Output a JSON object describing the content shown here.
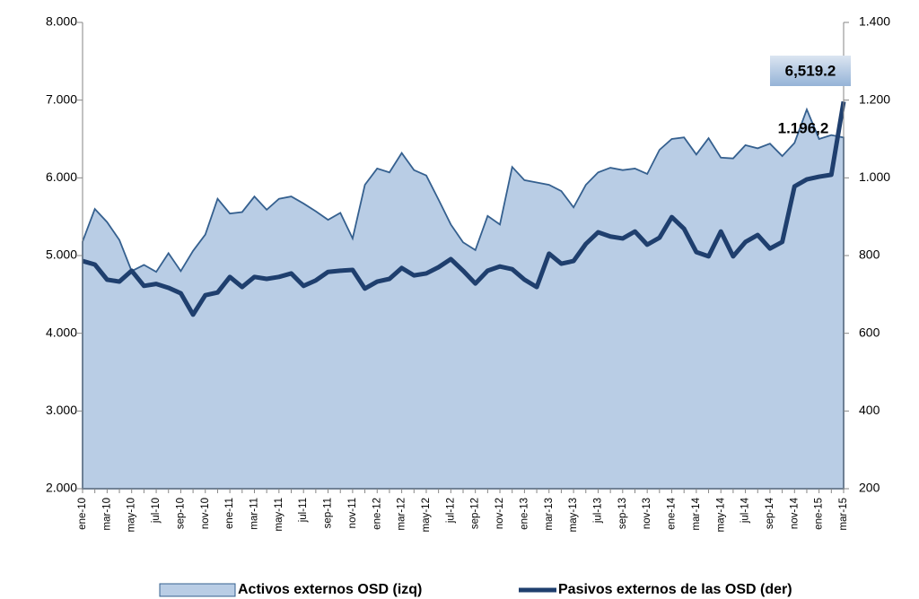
{
  "chart_data": {
    "type": "area_line",
    "categories": [
      "ene-10",
      null,
      "mar-10",
      null,
      "may-10",
      null,
      "jul-10",
      null,
      "sep-10",
      null,
      "nov-10",
      null,
      "ene-11",
      null,
      "mar-11",
      null,
      "may-11",
      null,
      "jul-11",
      null,
      "sep-11",
      null,
      "nov-11",
      null,
      "ene-12",
      null,
      "mar-12",
      null,
      "may-12",
      null,
      "jul-12",
      null,
      "sep-12",
      null,
      "nov-12",
      null,
      "ene-13",
      null,
      "mar-13",
      null,
      "may-13",
      null,
      "jul-13",
      null,
      "sep-13",
      null,
      "nov-13",
      null,
      "ene-14",
      null,
      "mar-14",
      null,
      "may-14",
      null,
      "jul-14",
      null,
      "sep-14",
      null,
      "nov-14",
      null,
      "ene-15",
      null,
      "mar-15"
    ],
    "series": [
      {
        "name": "Activos externos OSD (izq)",
        "type": "area",
        "axis": "y",
        "color": "#b9cde5",
        "stroke": "#35608f",
        "values": [
          5180,
          5600,
          5430,
          5200,
          4800,
          4880,
          4790,
          5030,
          4800,
          5060,
          5270,
          5730,
          5540,
          5560,
          5760,
          5590,
          5730,
          5760,
          5670,
          5570,
          5460,
          5550,
          5220,
          5910,
          6120,
          6070,
          6320,
          6100,
          6030,
          5720,
          5400,
          5170,
          5070,
          5510,
          5400,
          6140,
          5970,
          5940,
          5910,
          5830,
          5620,
          5910,
          6070,
          6130,
          6100,
          6120,
          6050,
          6360,
          6500,
          6520,
          6300,
          6510,
          6260,
          6250,
          6420,
          6380,
          6440,
          6280,
          6450,
          6880,
          6500,
          6550,
          6519.2
        ],
        "value_labels": [
          null,
          null,
          null,
          null,
          null,
          null,
          null,
          null,
          null,
          null,
          null,
          null,
          null,
          null,
          null,
          null,
          null,
          null,
          null,
          null,
          null,
          null,
          null,
          null,
          null,
          null,
          null,
          null,
          null,
          null,
          null,
          null,
          null,
          null,
          null,
          null,
          null,
          null,
          null,
          null,
          null,
          null,
          null,
          null,
          null,
          null,
          null,
          null,
          null,
          null,
          null,
          null,
          null,
          null,
          null,
          null,
          null,
          null,
          null,
          null,
          null,
          null,
          "6,519.2"
        ]
      },
      {
        "name": "Pasivos externos de las OSD (der)",
        "type": "line",
        "axis": "y2",
        "color": "#1f3f6e",
        "values": [
          786,
          777,
          738,
          733,
          761,
          722,
          727,
          717,
          703,
          648,
          698,
          705,
          745,
          719,
          745,
          740,
          745,
          754,
          722,
          736,
          758,
          761,
          763,
          715,
          733,
          740,
          768,
          749,
          754,
          770,
          791,
          761,
          728,
          761,
          772,
          765,
          738,
          719,
          805,
          779,
          786,
          830,
          860,
          849,
          844,
          862,
          828,
          846,
          899,
          869,
          809,
          798,
          862,
          798,
          835,
          853,
          818,
          835,
          978,
          996,
          1003,
          1008,
          1196.2
        ],
        "value_labels": [
          null,
          null,
          null,
          null,
          null,
          null,
          null,
          null,
          null,
          null,
          null,
          null,
          null,
          null,
          null,
          null,
          null,
          null,
          null,
          null,
          null,
          null,
          null,
          null,
          null,
          null,
          null,
          null,
          null,
          null,
          null,
          null,
          null,
          null,
          null,
          null,
          null,
          null,
          null,
          null,
          null,
          null,
          null,
          null,
          null,
          null,
          null,
          null,
          null,
          null,
          null,
          null,
          null,
          null,
          null,
          null,
          null,
          null,
          null,
          null,
          null,
          null,
          "1.196,2"
        ]
      }
    ],
    "ylim": [
      2000,
      8000
    ],
    "yticks": [
      {
        "value": 2000,
        "label": "2.000"
      },
      {
        "value": 3000,
        "label": "3.000"
      },
      {
        "value": 4000,
        "label": "4.000"
      },
      {
        "value": 5000,
        "label": "5.000"
      },
      {
        "value": 6000,
        "label": "6.000"
      },
      {
        "value": 7000,
        "label": "7.000"
      },
      {
        "value": 8000,
        "label": "8.000"
      }
    ],
    "y2lim": [
      200,
      1400
    ],
    "y2ticks": [
      200,
      400,
      600,
      800,
      {
        "value": 1000,
        "label": "1.000"
      },
      {
        "value": 1200,
        "label": "1.200"
      },
      {
        "value": 1400,
        "label": "1.400"
      }
    ],
    "legend": "bottom",
    "grid": false
  }
}
